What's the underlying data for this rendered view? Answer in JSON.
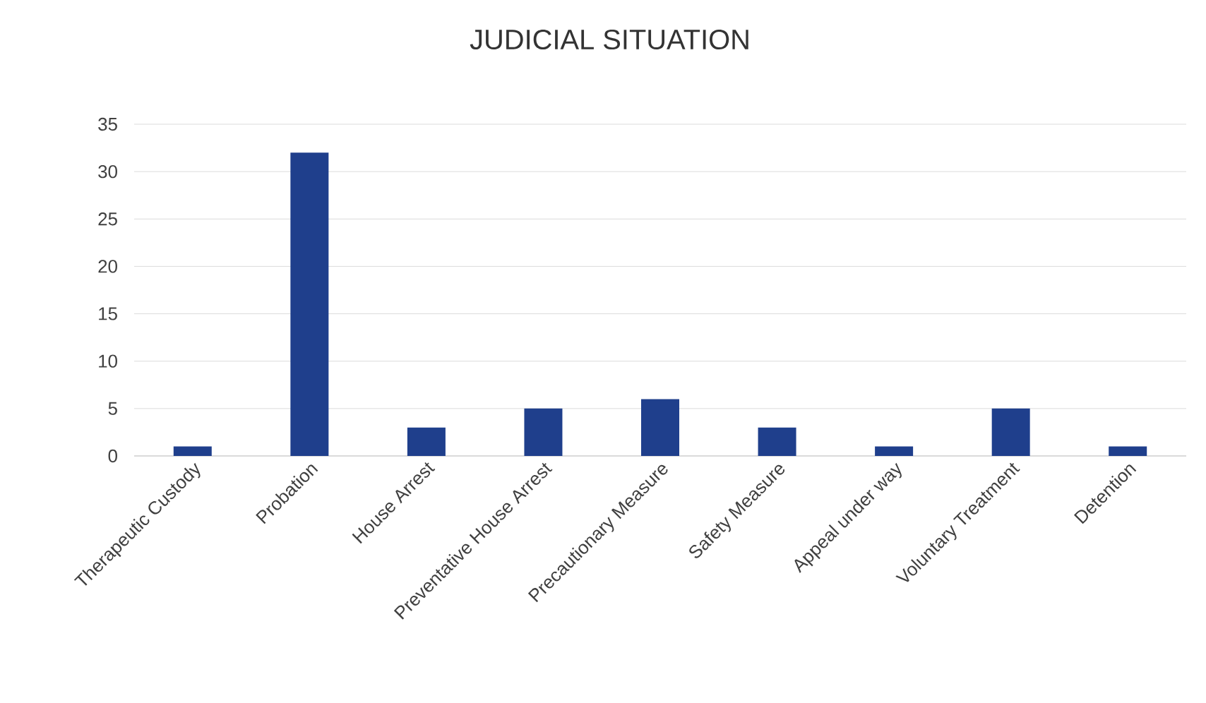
{
  "chart_data": {
    "type": "bar",
    "title": "JUDICIAL SITUATION",
    "categories": [
      "Therapeutic Custody",
      "Probation",
      "House Arrest",
      "Preventative House Arrest",
      "Precautionary Measure",
      "Safety Measure",
      "Appeal under way",
      "Voluntary Treatment",
      "Detention"
    ],
    "values": [
      1,
      32,
      3,
      5,
      6,
      3,
      1,
      5,
      1
    ],
    "color": "#1f3f8c",
    "ylim": [
      0,
      35
    ],
    "yticks": [
      0,
      5,
      10,
      15,
      20,
      25,
      30,
      35
    ],
    "grid": "y"
  }
}
